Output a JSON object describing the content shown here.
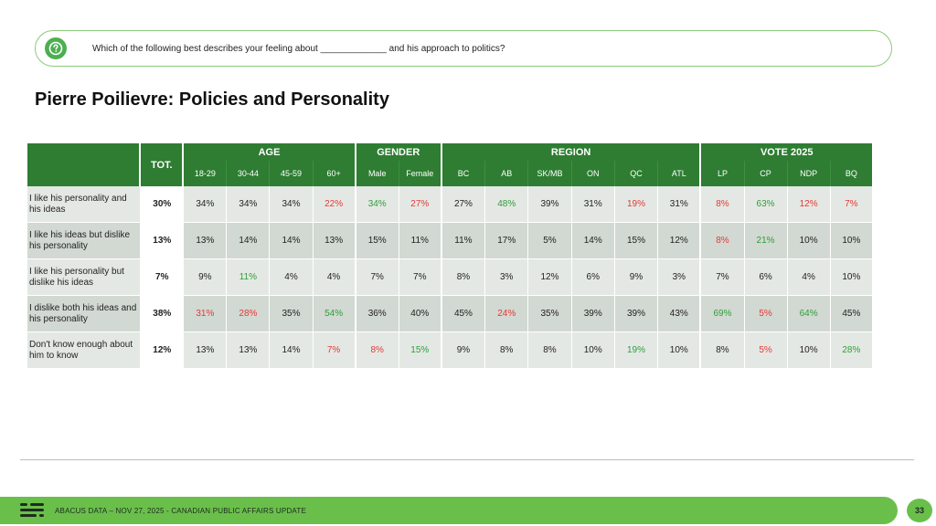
{
  "question": {
    "icon": "question-icon",
    "text": "Which of the following best describes your feeling about _____________ and his approach to politics?"
  },
  "title": "Pierre Poilievre: Policies and Personality",
  "colors": {
    "header_green": "#2e7d32",
    "accent_green": "#6abf4b",
    "positive": "#2e9e3a",
    "negative": "#e53935"
  },
  "table": {
    "tot_label": "TOT.",
    "groups": [
      {
        "label": "AGE",
        "cols": [
          "18-29",
          "30-44",
          "45-59",
          "60+"
        ]
      },
      {
        "label": "GENDER",
        "cols": [
          "Male",
          "Female"
        ]
      },
      {
        "label": "REGION",
        "cols": [
          "BC",
          "AB",
          "SK/MB",
          "ON",
          "QC",
          "ATL"
        ]
      },
      {
        "label": "VOTE 2025",
        "cols": [
          "LP",
          "CP",
          "NDP",
          "BQ"
        ]
      }
    ],
    "rows": [
      {
        "label": "I like his personality and his ideas",
        "tot": "30%",
        "cells": [
          {
            "v": "34%",
            "c": "black"
          },
          {
            "v": "34%",
            "c": "black"
          },
          {
            "v": "34%",
            "c": "black"
          },
          {
            "v": "22%",
            "c": "red"
          },
          {
            "v": "34%",
            "c": "green"
          },
          {
            "v": "27%",
            "c": "red"
          },
          {
            "v": "27%",
            "c": "black"
          },
          {
            "v": "48%",
            "c": "green"
          },
          {
            "v": "39%",
            "c": "black"
          },
          {
            "v": "31%",
            "c": "black"
          },
          {
            "v": "19%",
            "c": "red"
          },
          {
            "v": "31%",
            "c": "black"
          },
          {
            "v": "8%",
            "c": "red"
          },
          {
            "v": "63%",
            "c": "green"
          },
          {
            "v": "12%",
            "c": "red"
          },
          {
            "v": "7%",
            "c": "red"
          }
        ]
      },
      {
        "label": "I like his ideas but dislike his personality",
        "tot": "13%",
        "cells": [
          {
            "v": "13%",
            "c": "black"
          },
          {
            "v": "14%",
            "c": "black"
          },
          {
            "v": "14%",
            "c": "black"
          },
          {
            "v": "13%",
            "c": "black"
          },
          {
            "v": "15%",
            "c": "black"
          },
          {
            "v": "11%",
            "c": "black"
          },
          {
            "v": "11%",
            "c": "black"
          },
          {
            "v": "17%",
            "c": "black"
          },
          {
            "v": "5%",
            "c": "black"
          },
          {
            "v": "14%",
            "c": "black"
          },
          {
            "v": "15%",
            "c": "black"
          },
          {
            "v": "12%",
            "c": "black"
          },
          {
            "v": "8%",
            "c": "red"
          },
          {
            "v": "21%",
            "c": "green"
          },
          {
            "v": "10%",
            "c": "black"
          },
          {
            "v": "10%",
            "c": "black"
          }
        ]
      },
      {
        "label": "I like his personality but dislike his ideas",
        "tot": "7%",
        "cells": [
          {
            "v": "9%",
            "c": "black"
          },
          {
            "v": "11%",
            "c": "green"
          },
          {
            "v": "4%",
            "c": "black"
          },
          {
            "v": "4%",
            "c": "black"
          },
          {
            "v": "7%",
            "c": "black"
          },
          {
            "v": "7%",
            "c": "black"
          },
          {
            "v": "8%",
            "c": "black"
          },
          {
            "v": "3%",
            "c": "black"
          },
          {
            "v": "12%",
            "c": "black"
          },
          {
            "v": "6%",
            "c": "black"
          },
          {
            "v": "9%",
            "c": "black"
          },
          {
            "v": "3%",
            "c": "black"
          },
          {
            "v": "7%",
            "c": "black"
          },
          {
            "v": "6%",
            "c": "black"
          },
          {
            "v": "4%",
            "c": "black"
          },
          {
            "v": "10%",
            "c": "black"
          }
        ]
      },
      {
        "label": "I dislike both his ideas and his personality",
        "tot": "38%",
        "cells": [
          {
            "v": "31%",
            "c": "red"
          },
          {
            "v": "28%",
            "c": "red"
          },
          {
            "v": "35%",
            "c": "black"
          },
          {
            "v": "54%",
            "c": "green"
          },
          {
            "v": "36%",
            "c": "black"
          },
          {
            "v": "40%",
            "c": "black"
          },
          {
            "v": "45%",
            "c": "black"
          },
          {
            "v": "24%",
            "c": "red"
          },
          {
            "v": "35%",
            "c": "black"
          },
          {
            "v": "39%",
            "c": "black"
          },
          {
            "v": "39%",
            "c": "black"
          },
          {
            "v": "43%",
            "c": "black"
          },
          {
            "v": "69%",
            "c": "green"
          },
          {
            "v": "5%",
            "c": "red"
          },
          {
            "v": "64%",
            "c": "green"
          },
          {
            "v": "45%",
            "c": "black"
          }
        ]
      },
      {
        "label": "Don't know enough about him to know",
        "tot": "12%",
        "cells": [
          {
            "v": "13%",
            "c": "black"
          },
          {
            "v": "13%",
            "c": "black"
          },
          {
            "v": "14%",
            "c": "black"
          },
          {
            "v": "7%",
            "c": "red"
          },
          {
            "v": "8%",
            "c": "red"
          },
          {
            "v": "15%",
            "c": "green"
          },
          {
            "v": "9%",
            "c": "black"
          },
          {
            "v": "8%",
            "c": "black"
          },
          {
            "v": "8%",
            "c": "black"
          },
          {
            "v": "10%",
            "c": "black"
          },
          {
            "v": "19%",
            "c": "green"
          },
          {
            "v": "10%",
            "c": "black"
          },
          {
            "v": "8%",
            "c": "black"
          },
          {
            "v": "5%",
            "c": "red"
          },
          {
            "v": "10%",
            "c": "black"
          },
          {
            "v": "28%",
            "c": "green"
          }
        ]
      }
    ]
  },
  "footer": {
    "logo": "abacus-logo",
    "text": "ABACUS DATA – NOV 27, 2025 - CANADIAN PUBLIC AFFAIRS UPDATE",
    "page": "33"
  }
}
